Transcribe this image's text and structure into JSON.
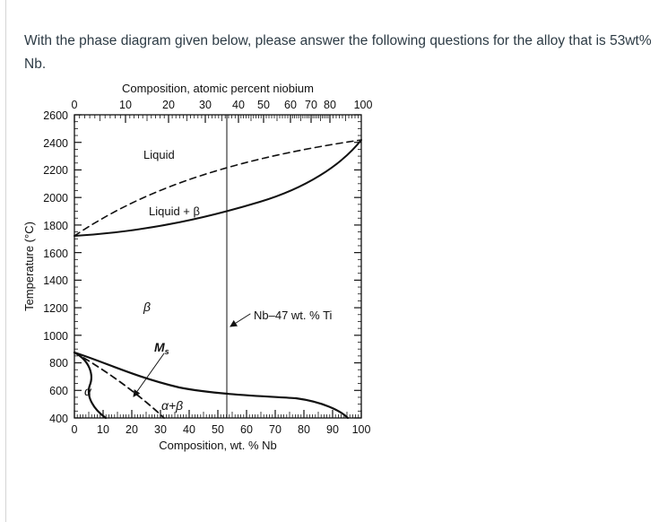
{
  "question": {
    "text": "With the phase diagram given below, please answer the following questions for the alloy that is 53wt% Nb."
  },
  "diagram": {
    "top_axis_title": "Composition, atomic percent niobium",
    "top_ticks": [
      "0",
      "10",
      "20",
      "30",
      "40",
      "50",
      "60",
      "70",
      "80",
      "100"
    ],
    "bottom_axis_title": "Composition, wt. % Nb",
    "bottom_ticks": [
      "0",
      "10",
      "20",
      "30",
      "40",
      "50",
      "60",
      "70",
      "80",
      "90",
      "100"
    ],
    "y_axis_title": "Temperature (°C)",
    "y_ticks": [
      "2600",
      "2400",
      "2200",
      "2000",
      "1800",
      "1600",
      "1400",
      "1200",
      "1000",
      "800",
      "600",
      "400"
    ],
    "labels": {
      "liquid": "Liquid",
      "liquid_beta": "Liquid + β",
      "beta": "β",
      "ms": "M",
      "ms_sub": "s",
      "alpha": "α",
      "alpha_beta": "α+β",
      "composition_marker": "Nb–47 wt. % Ti"
    }
  }
}
